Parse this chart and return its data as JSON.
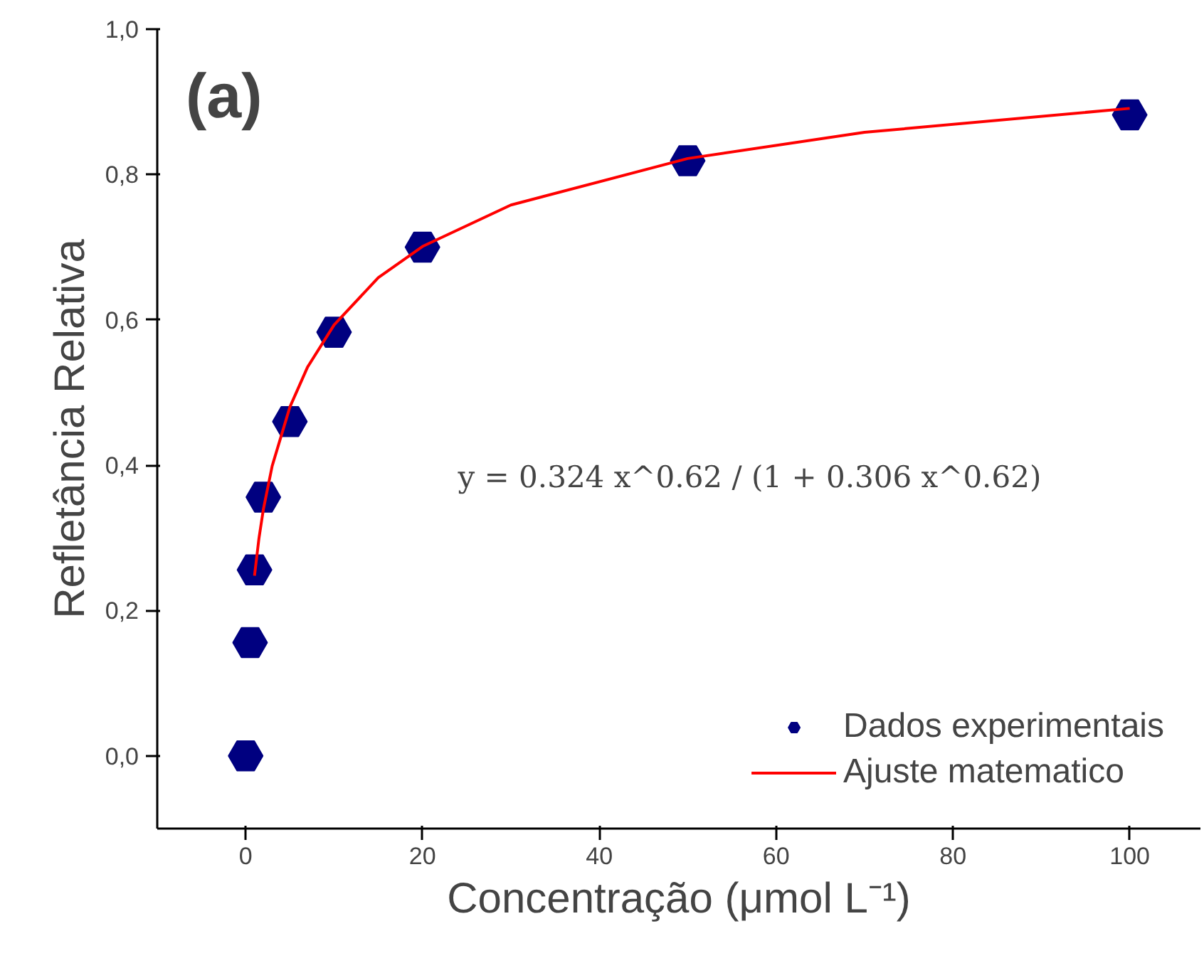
{
  "chart_data": {
    "type": "scatter",
    "title": "(a)",
    "xlabel": "Concentração (μmol L⁻¹)",
    "ylabel": "Refletância Relativa",
    "annotations": [
      "y = 0.324 x^0.62 / (1 + 0.306 x^0.62)"
    ],
    "series": [
      {
        "name": "Dados experimentais",
        "color": "#000080",
        "x": [
          0,
          0.5,
          1,
          2,
          5,
          10,
          20,
          50,
          100
        ],
        "values": [
          0.0,
          0.156,
          0.256,
          0.356,
          0.46,
          0.583,
          0.7,
          0.819,
          0.882
        ]
      },
      {
        "name": "Ajuste matematico",
        "type": "line",
        "color": "#ff0000",
        "x": [
          1,
          1.5,
          2,
          3,
          5,
          7,
          10,
          15,
          20,
          30,
          50,
          70,
          100
        ],
        "values": [
          0.248,
          0.299,
          0.339,
          0.399,
          0.48,
          0.535,
          0.593,
          0.658,
          0.701,
          0.758,
          0.822,
          0.858,
          0.891
        ]
      }
    ],
    "xlim": [
      -10,
      108
    ],
    "ylim": [
      -0.1,
      1.0
    ],
    "xticks": [
      0,
      20,
      40,
      60,
      80,
      100
    ],
    "yticks": [
      {
        "value": 0,
        "label": "0,0"
      },
      {
        "value": 0.2,
        "label": "0,2"
      },
      {
        "value": 0.4,
        "label": "0,4"
      },
      {
        "value": 0.6,
        "label": "0,6"
      },
      {
        "value": 0.8,
        "label": "0,8"
      },
      {
        "value": 1.0,
        "label": "1,0"
      }
    ],
    "grid": false,
    "legend": "bottom right"
  }
}
